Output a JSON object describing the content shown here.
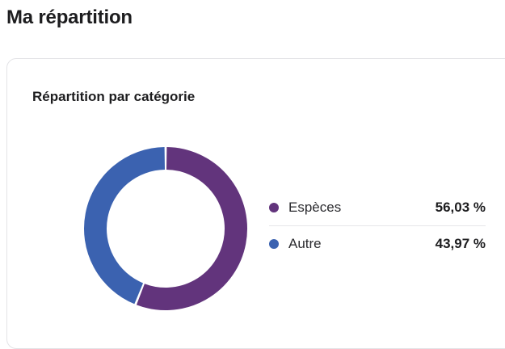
{
  "page": {
    "title": "Ma répartition"
  },
  "card": {
    "title": "Répartition par catégorie"
  },
  "chart_data": {
    "type": "pie",
    "variant": "donut",
    "title": "Répartition par catégorie",
    "categories": [
      "Espèces",
      "Autre"
    ],
    "values": [
      56.03,
      43.97
    ],
    "unit": "%",
    "colors": [
      "#62347c",
      "#3b62b0"
    ],
    "legend": "right"
  },
  "legend": {
    "items": [
      {
        "label": "Espèces",
        "value": "56,03 %",
        "color": "#62347c"
      },
      {
        "label": "Autre",
        "value": "43,97 %",
        "color": "#3b62b0"
      }
    ]
  }
}
